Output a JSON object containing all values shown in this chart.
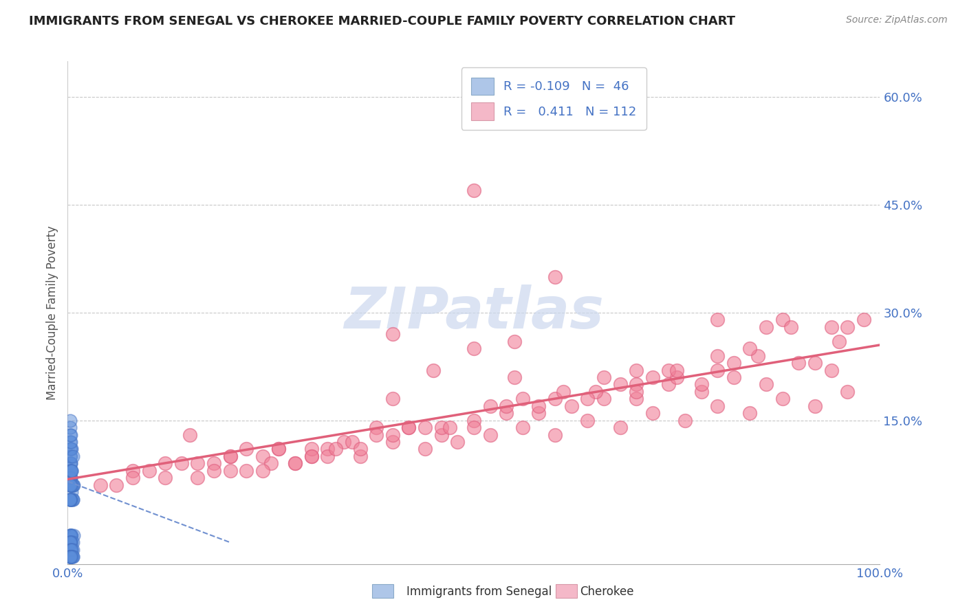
{
  "title": "IMMIGRANTS FROM SENEGAL VS CHEROKEE MARRIED-COUPLE FAMILY POVERTY CORRELATION CHART",
  "source": "Source: ZipAtlas.com",
  "ylabel": "Married-Couple Family Poverty",
  "xlim": [
    0.0,
    1.0
  ],
  "ylim": [
    -0.05,
    0.65
  ],
  "xticklabels": [
    "0.0%",
    "100.0%"
  ],
  "yticks": [
    0.15,
    0.3,
    0.45,
    0.6
  ],
  "yticklabels": [
    "15.0%",
    "30.0%",
    "45.0%",
    "60.0%"
  ],
  "blue_color": "#5b8dd9",
  "pink_color": "#f08098",
  "blue_edge": "#4472c4",
  "pink_edge": "#e06080",
  "pink_line_color": "#e0607a",
  "blue_line_color": "#7090d0",
  "watermark_color": "#ccd8ee",
  "title_color": "#222222",
  "axis_label_color": "#555555",
  "tick_color": "#4472c4",
  "background_color": "#ffffff",
  "grid_color": "#c8c8c8",
  "senegal_x": [
    0.003,
    0.004,
    0.003,
    0.005,
    0.003,
    0.004,
    0.006,
    0.003,
    0.004,
    0.005,
    0.003,
    0.004,
    0.003,
    0.005,
    0.003,
    0.007,
    0.004,
    0.003,
    0.005,
    0.006,
    0.003,
    0.004,
    0.003,
    0.005,
    0.006,
    0.003,
    0.004,
    0.005,
    0.003,
    0.004,
    0.003,
    0.005,
    0.004,
    0.003,
    0.006,
    0.004,
    0.003,
    0.005,
    0.003,
    0.004,
    0.003,
    0.005,
    0.004,
    0.003,
    0.006,
    0.004
  ],
  "senegal_y": [
    0.08,
    0.06,
    0.1,
    0.05,
    0.07,
    0.09,
    0.04,
    0.11,
    0.07,
    0.04,
    0.12,
    0.07,
    0.09,
    0.04,
    0.13,
    0.06,
    0.09,
    0.04,
    0.11,
    0.06,
    0.14,
    0.06,
    0.08,
    0.06,
    0.04,
    0.15,
    0.08,
    0.06,
    0.04,
    0.1,
    0.07,
    0.06,
    0.08,
    0.04,
    0.06,
    0.11,
    0.06,
    0.08,
    0.04,
    0.12,
    0.06,
    0.08,
    0.06,
    0.04,
    0.1,
    0.13
  ],
  "senegal_y_neg": [
    0.0,
    0.0,
    0.0,
    0.0,
    0.0,
    0.0,
    0.0,
    0.0,
    0.0,
    0.0,
    -0.01,
    -0.01,
    -0.01,
    -0.01,
    -0.01,
    -0.01,
    -0.01,
    -0.02,
    -0.02,
    -0.02,
    -0.02,
    -0.02,
    -0.02,
    -0.03,
    -0.03,
    -0.03,
    -0.03,
    -0.03,
    -0.04,
    -0.04,
    -0.04,
    -0.04,
    -0.04,
    -0.04,
    -0.04,
    -0.04,
    -0.04,
    -0.04,
    -0.04,
    -0.04,
    -0.04,
    -0.04,
    -0.04,
    -0.04,
    -0.04,
    -0.04
  ],
  "cherokee_x": [
    0.04,
    0.08,
    0.12,
    0.16,
    0.2,
    0.24,
    0.28,
    0.32,
    0.36,
    0.4,
    0.44,
    0.48,
    0.52,
    0.56,
    0.6,
    0.64,
    0.68,
    0.72,
    0.76,
    0.8,
    0.84,
    0.88,
    0.92,
    0.96,
    0.14,
    0.22,
    0.3,
    0.38,
    0.46,
    0.54,
    0.62,
    0.7,
    0.78,
    0.86,
    0.94,
    0.1,
    0.18,
    0.26,
    0.34,
    0.42,
    0.5,
    0.58,
    0.66,
    0.74,
    0.82,
    0.9,
    0.06,
    0.2,
    0.35,
    0.5,
    0.65,
    0.8,
    0.95,
    0.15,
    0.3,
    0.45,
    0.6,
    0.75,
    0.4,
    0.55,
    0.7,
    0.85,
    0.25,
    0.4,
    0.55,
    0.7,
    0.08,
    0.22,
    0.36,
    0.5,
    0.64,
    0.78,
    0.92,
    0.12,
    0.26,
    0.4,
    0.54,
    0.68,
    0.82,
    0.96,
    0.18,
    0.32,
    0.46,
    0.6,
    0.74,
    0.88,
    0.16,
    0.3,
    0.44,
    0.58,
    0.72,
    0.86,
    0.24,
    0.38,
    0.52,
    0.66,
    0.8,
    0.94,
    0.28,
    0.42,
    0.56,
    0.7,
    0.84,
    0.98,
    0.33,
    0.47,
    0.61,
    0.75,
    0.89,
    0.2,
    0.5,
    0.8
  ],
  "cherokee_y": [
    0.06,
    0.08,
    0.07,
    0.09,
    0.08,
    0.1,
    0.09,
    0.11,
    0.1,
    0.12,
    0.11,
    0.12,
    0.13,
    0.14,
    0.13,
    0.15,
    0.14,
    0.16,
    0.15,
    0.17,
    0.16,
    0.18,
    0.17,
    0.19,
    0.09,
    0.11,
    0.1,
    0.14,
    0.13,
    0.16,
    0.17,
    0.18,
    0.19,
    0.2,
    0.22,
    0.08,
    0.09,
    0.11,
    0.12,
    0.14,
    0.15,
    0.16,
    0.18,
    0.2,
    0.21,
    0.23,
    0.06,
    0.1,
    0.12,
    0.25,
    0.19,
    0.22,
    0.26,
    0.13,
    0.11,
    0.22,
    0.35,
    0.21,
    0.27,
    0.26,
    0.2,
    0.24,
    0.09,
    0.18,
    0.21,
    0.19,
    0.07,
    0.08,
    0.11,
    0.14,
    0.18,
    0.2,
    0.23,
    0.09,
    0.11,
    0.13,
    0.17,
    0.2,
    0.23,
    0.28,
    0.08,
    0.1,
    0.14,
    0.18,
    0.22,
    0.29,
    0.07,
    0.1,
    0.14,
    0.17,
    0.21,
    0.28,
    0.08,
    0.13,
    0.17,
    0.21,
    0.24,
    0.28,
    0.09,
    0.14,
    0.18,
    0.22,
    0.25,
    0.29,
    0.11,
    0.14,
    0.19,
    0.22,
    0.28,
    0.1,
    0.47,
    0.29
  ],
  "senegal_tline_x": [
    0.0,
    0.2
  ],
  "senegal_tline_y": [
    0.065,
    -0.02
  ],
  "cherokee_tline_x": [
    0.0,
    1.0
  ],
  "cherokee_tline_y": [
    0.068,
    0.255
  ]
}
